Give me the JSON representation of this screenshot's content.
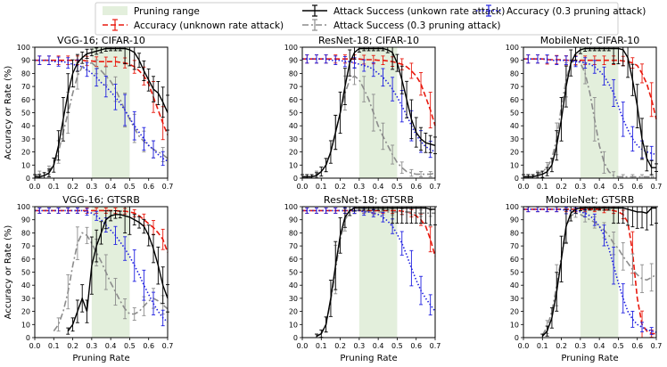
{
  "chart_data": {
    "type": "line",
    "legend": {
      "location": "top-center",
      "entries": [
        {
          "key": "range",
          "label": "Pruning range"
        },
        {
          "key": "acc_unknown",
          "label": "Accuracy (unknown rate attack)"
        },
        {
          "key": "att_unknown",
          "label": "Attack Success (unkown rate attack)"
        },
        {
          "key": "att_03",
          "label": "Attack Success (0.3 pruning attack)"
        },
        {
          "key": "acc_03",
          "label": "Accuracy (0.3 pruning attack)"
        }
      ]
    },
    "styles": {
      "acc_unknown": {
        "color": "#e8190e",
        "dash": "6,3"
      },
      "att_unknown": {
        "color": "#000000",
        "dash": ""
      },
      "att_03": {
        "color": "#8c8c8c",
        "dash": "7,3,2,3"
      },
      "acc_03": {
        "color": "#1f1fe0",
        "dash": "1.5,2.2"
      },
      "range_fill": "#e3efdc"
    },
    "xlabel": "Pruning Rate",
    "ylabel": "Accuracy or Rate (%)",
    "xlim": [
      0,
      0.7
    ],
    "ylim": [
      0,
      100
    ],
    "xticks": [
      "0.0",
      "0.1",
      "0.2",
      "0.3",
      "0.4",
      "0.5",
      "0.6",
      "0.7"
    ],
    "yticks": [
      "0",
      "10",
      "20",
      "30",
      "40",
      "50",
      "60",
      "70",
      "80",
      "90",
      "100"
    ],
    "pruning_range": [
      0.3,
      0.5
    ],
    "x": [
      0.0,
      0.025,
      0.05,
      0.075,
      0.1,
      0.125,
      0.15,
      0.175,
      0.2,
      0.225,
      0.25,
      0.275,
      0.3,
      0.325,
      0.35,
      0.375,
      0.4,
      0.425,
      0.45,
      0.475,
      0.5,
      0.525,
      0.55,
      0.575,
      0.6,
      0.625,
      0.65,
      0.675,
      0.7
    ],
    "panels": [
      {
        "title": "VGG-16; CIFAR-10",
        "series": {
          "acc_unknown": [
            90,
            90,
            90,
            90,
            90,
            90,
            90,
            90,
            90,
            90,
            90,
            89.5,
            89.5,
            89,
            89,
            89,
            89,
            89,
            88.5,
            88,
            87,
            85,
            82,
            78,
            72,
            62,
            52,
            42,
            33
          ],
          "att_unknown": [
            1,
            1,
            2,
            4,
            10,
            25,
            45,
            65,
            80,
            88,
            92,
            95,
            96,
            97,
            98,
            99,
            99,
            99,
            99,
            99,
            98,
            96,
            90,
            82,
            75,
            68,
            65,
            58,
            50
          ],
          "att_03": [
            2,
            3,
            4,
            6,
            10,
            20,
            35,
            50,
            65,
            78,
            85,
            87,
            88,
            85,
            82,
            78,
            74,
            68,
            60,
            52,
            45,
            38,
            32,
            28,
            25,
            22,
            20,
            18,
            15
          ],
          "acc_03": [
            90,
            90,
            90,
            90,
            89,
            89,
            89,
            88,
            87,
            86,
            85,
            83,
            80,
            77,
            73,
            70,
            66,
            62,
            57,
            52,
            46,
            40,
            35,
            30,
            25,
            22,
            18,
            15,
            13
          ]
        }
      },
      {
        "title": "ResNet-18; CIFAR-10",
        "series": {
          "acc_unknown": [
            91,
            91,
            91,
            91,
            91,
            91,
            91,
            91,
            91,
            91,
            91,
            91,
            91,
            90.5,
            90.5,
            90.5,
            90,
            90,
            89.5,
            89,
            88,
            87,
            85,
            82,
            78,
            72,
            62,
            52,
            40
          ],
          "att_unknown": [
            1,
            1,
            1,
            2,
            5,
            10,
            20,
            35,
            50,
            70,
            88,
            96,
            99,
            99,
            99,
            99,
            99,
            99,
            98,
            96,
            88,
            75,
            60,
            45,
            35,
            30,
            27,
            26,
            25
          ],
          "att_03": [
            1,
            1,
            2,
            3,
            5,
            10,
            20,
            35,
            50,
            65,
            75,
            78,
            75,
            68,
            60,
            50,
            40,
            32,
            25,
            18,
            12,
            8,
            5,
            4,
            3,
            3,
            3,
            3,
            4
          ],
          "acc_03": [
            91,
            91,
            91,
            91,
            91,
            91,
            90,
            90,
            90,
            89,
            89,
            88,
            87,
            86,
            85,
            83,
            80,
            77,
            73,
            68,
            62,
            55,
            48,
            40,
            33,
            28,
            24,
            22,
            20
          ]
        }
      },
      {
        "title": "MobileNet; CIFAR-10",
        "series": {
          "acc_unknown": [
            91,
            91,
            91,
            91,
            91,
            90.5,
            90.5,
            90.5,
            90.5,
            90,
            90,
            90,
            90,
            90,
            90,
            90,
            90,
            90,
            90,
            90,
            90,
            89.5,
            89,
            88,
            86,
            80,
            72,
            60,
            45
          ],
          "att_unknown": [
            1,
            1,
            1,
            2,
            3,
            5,
            10,
            25,
            45,
            70,
            88,
            95,
            98,
            99,
            99,
            99,
            99,
            99,
            99,
            99,
            99,
            98,
            92,
            75,
            55,
            30,
            15,
            8,
            8
          ],
          "att_03": [
            1,
            1,
            2,
            3,
            5,
            8,
            15,
            30,
            55,
            75,
            88,
            90,
            88,
            80,
            65,
            45,
            25,
            12,
            5,
            2,
            1,
            1,
            1,
            1,
            1,
            1,
            1,
            1,
            1
          ],
          "acc_03": [
            91,
            91,
            91,
            91,
            91,
            91,
            90,
            90,
            90,
            90,
            90,
            89,
            89,
            88,
            87,
            85,
            82,
            78,
            72,
            65,
            55,
            45,
            37,
            30,
            25,
            22,
            20,
            19,
            18
          ]
        }
      },
      {
        "title": "VGG-16; GTSRB",
        "series": {
          "acc_unknown": [
            97,
            97,
            97,
            97,
            97,
            97,
            97,
            97,
            97,
            97,
            97,
            97,
            97,
            97,
            97,
            97,
            97,
            97,
            96.5,
            96.5,
            96,
            95,
            93,
            90,
            87,
            84,
            80,
            75,
            65
          ],
          "att_unknown": [
            null,
            null,
            null,
            null,
            null,
            null,
            null,
            5,
            10,
            20,
            30,
            20,
            55,
            70,
            80,
            90,
            93,
            94,
            94,
            93,
            92,
            90,
            88,
            85,
            78,
            68,
            55,
            40,
            30
          ],
          "att_03": [
            null,
            null,
            null,
            null,
            5,
            10,
            20,
            35,
            55,
            72,
            80,
            78,
            72,
            65,
            58,
            50,
            42,
            35,
            28,
            22,
            18,
            18,
            20,
            24,
            28,
            30,
            28,
            25,
            22
          ],
          "acc_03": [
            97,
            97,
            97,
            97,
            97,
            97,
            97,
            97,
            97,
            97,
            97,
            96,
            95,
            93,
            90,
            86,
            82,
            78,
            73,
            68,
            62,
            55,
            48,
            40,
            33,
            26,
            20,
            15,
            12
          ]
        }
      },
      {
        "title": "ResNet-18; GTSRB",
        "series": {
          "acc_unknown": [
            97,
            97,
            97,
            97,
            97,
            97,
            97,
            97,
            97,
            97,
            97,
            97,
            97,
            97,
            97,
            97,
            97,
            97,
            97,
            97,
            97,
            96.5,
            96,
            95,
            93,
            90,
            85,
            75,
            62
          ],
          "att_unknown": [
            null,
            null,
            null,
            1,
            3,
            10,
            30,
            55,
            78,
            92,
            97,
            99,
            99,
            99,
            99,
            99,
            99,
            99,
            99,
            99,
            99,
            99,
            99,
            99,
            99,
            99,
            99,
            98,
            98
          ],
          "att_03": [
            null,
            null,
            null,
            1,
            3,
            10,
            28,
            52,
            75,
            90,
            96,
            97,
            97,
            97,
            96,
            96,
            96,
            96,
            96,
            96,
            96,
            96,
            96,
            96,
            95,
            95,
            95,
            95,
            95
          ],
          "acc_03": [
            97,
            97,
            97,
            97,
            97,
            97,
            97,
            97,
            97,
            97,
            97,
            97,
            97,
            96,
            96,
            95,
            94,
            92,
            89,
            85,
            79,
            72,
            63,
            53,
            44,
            36,
            30,
            25,
            20
          ]
        }
      },
      {
        "title": "MobileNet; GTSRB",
        "series": {
          "acc_unknown": [
            98,
            98,
            98,
            98,
            98,
            98,
            98,
            98,
            98,
            98,
            98,
            98,
            98,
            98,
            98,
            98,
            98,
            97.5,
            97.5,
            97,
            96,
            94,
            88,
            65,
            30,
            10,
            5,
            3,
            3
          ],
          "att_unknown": [
            null,
            null,
            null,
            null,
            1,
            5,
            15,
            35,
            60,
            85,
            95,
            98,
            99,
            99,
            99,
            99,
            99,
            99,
            99,
            99,
            99,
            99,
            98,
            97,
            96,
            96,
            95,
            99,
            99
          ],
          "att_03": [
            null,
            null,
            null,
            null,
            2,
            8,
            20,
            40,
            62,
            85,
            93,
            95,
            94,
            92,
            90,
            88,
            85,
            82,
            78,
            72,
            68,
            62,
            57,
            52,
            48,
            45,
            44,
            46,
            48
          ],
          "acc_03": [
            98,
            98,
            98,
            98,
            98,
            98,
            98,
            98,
            98,
            97,
            97,
            97,
            96,
            95,
            93,
            90,
            85,
            78,
            68,
            55,
            42,
            30,
            20,
            14,
            10,
            8,
            6,
            5,
            4
          ]
        }
      }
    ]
  }
}
